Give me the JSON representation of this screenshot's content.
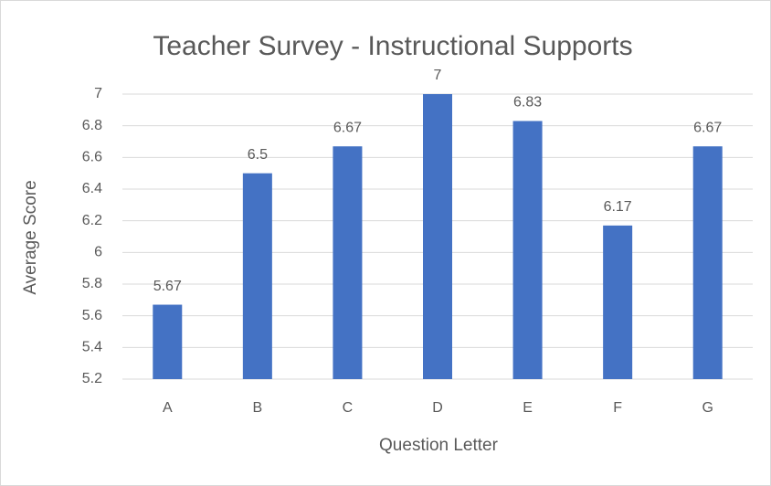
{
  "chart_data": {
    "type": "bar",
    "title": "Teacher Survey - Instructional Supports",
    "x_label": "Question Letter",
    "y_label": "Average Score",
    "categories": [
      "A",
      "B",
      "C",
      "D",
      "E",
      "F",
      "G"
    ],
    "values": [
      5.67,
      6.5,
      6.67,
      7,
      6.83,
      6.17,
      6.67
    ],
    "color": "#4472c4",
    "ylim": [
      5.2,
      7
    ],
    "yticks": [
      5.2,
      5.4,
      5.6,
      5.8,
      6,
      6.2,
      6.4,
      6.6,
      6.8,
      7
    ],
    "grid": true
  }
}
